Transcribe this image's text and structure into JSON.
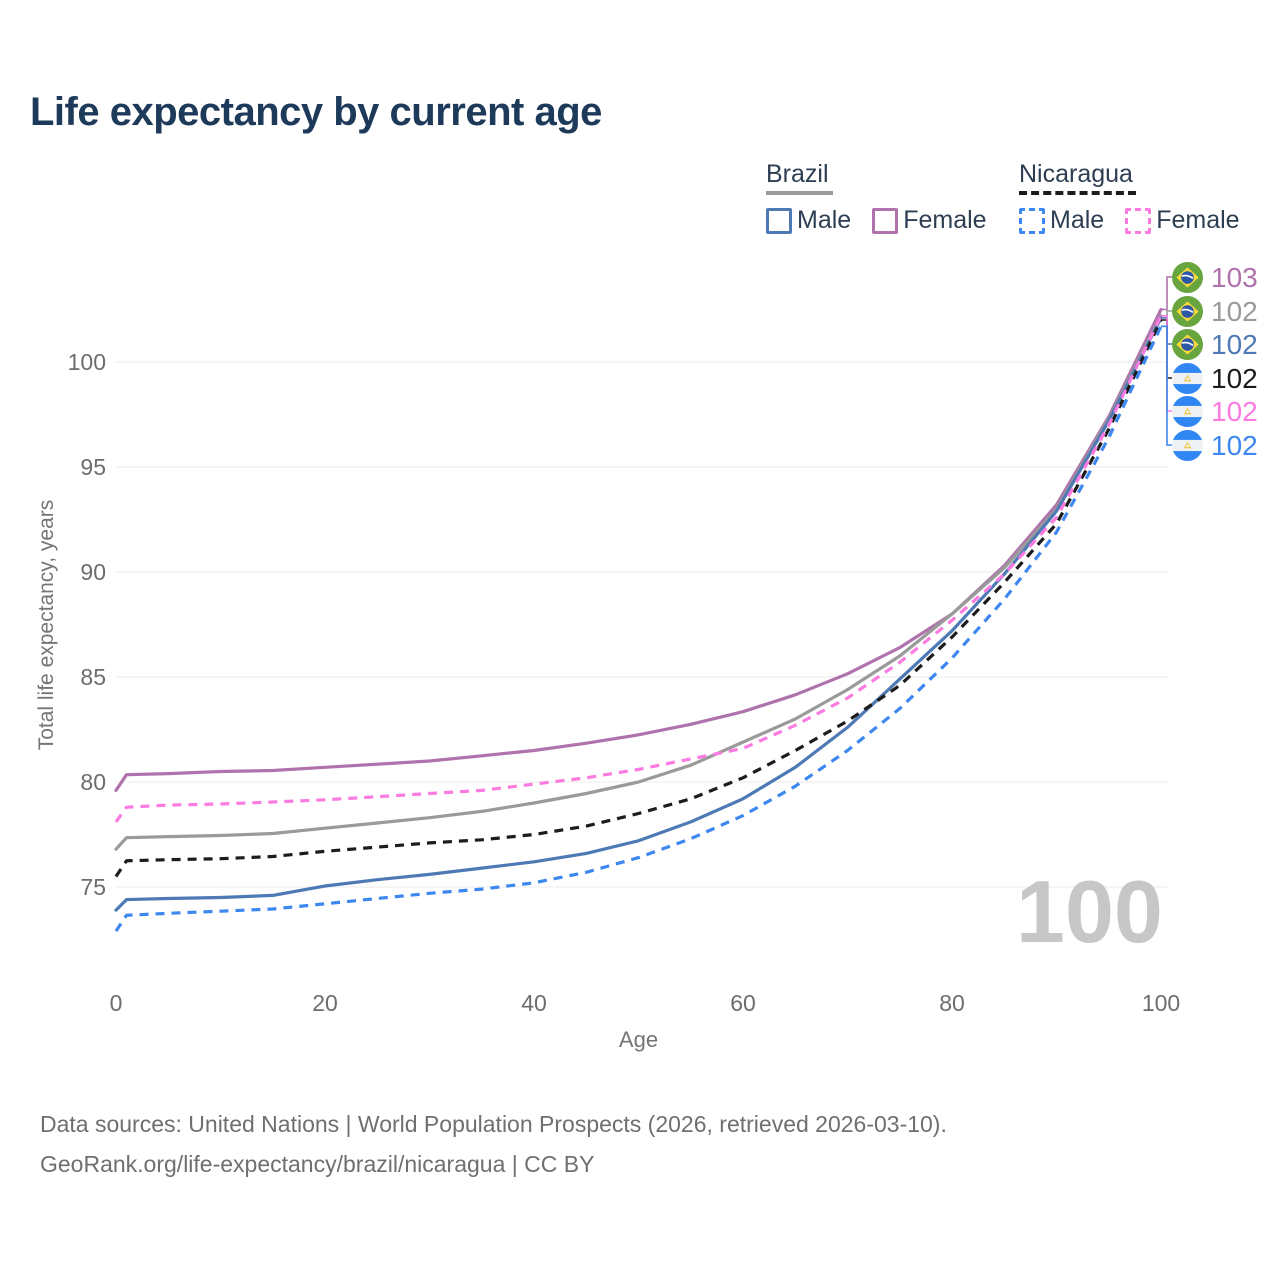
{
  "title": "Life expectancy by current age",
  "legend": {
    "brazil": {
      "label": "Brazil",
      "male": "Male",
      "female": "Female"
    },
    "nicaragua": {
      "label": "Nicaragua",
      "male": "Male",
      "female": "Female"
    }
  },
  "axes": {
    "x_label": "Age",
    "y_label": "Total life expectancy, years",
    "x_ticks": [
      0,
      20,
      40,
      60,
      80,
      100
    ],
    "y_ticks": [
      75,
      80,
      85,
      90,
      95,
      100
    ]
  },
  "watermark": "100",
  "footer": {
    "line1": "Data sources: United Nations | World Population Prospects (2026, retrieved 2026-03-10).",
    "line2": "GeoRank.org/life-expectancy/brazil/nicaragua | CC BY"
  },
  "colors": {
    "title": "#1e3a5a",
    "axis_text": "#6d6d6d",
    "grid": "#ebebeb",
    "watermark": "#c7c7c7",
    "brazil_female": "#af72ad",
    "brazil_total": "#9a9a9a",
    "brazil_male": "#4d79b5",
    "nicaragua_total": "#1c1c1c",
    "nicaragua_female": "#fb7be0",
    "nicaragua_male": "#3d87f1"
  },
  "chart_data": {
    "type": "line",
    "title": "Life expectancy by current age",
    "xlabel": "Age",
    "ylabel": "Total life expectancy, years",
    "xlim": [
      0,
      100
    ],
    "ylim": [
      75,
      100
    ],
    "grid": "horizontal",
    "legend_position": "top-right",
    "x": [
      0,
      1,
      5,
      10,
      15,
      20,
      25,
      30,
      35,
      40,
      45,
      50,
      55,
      60,
      65,
      70,
      75,
      80,
      85,
      90,
      95,
      100
    ],
    "series": [
      {
        "name": "Brazil — Female",
        "country": "brazil",
        "dash": false,
        "color": "#af72ad",
        "end_label": "103",
        "values": [
          79.6,
          80.35,
          80.4,
          80.5,
          80.55,
          80.7,
          80.85,
          81.0,
          81.25,
          81.5,
          81.85,
          82.25,
          82.75,
          83.35,
          84.15,
          85.15,
          86.4,
          88.0,
          90.3,
          93.2,
          97.4,
          102.5
        ]
      },
      {
        "name": "Brazil",
        "country": "brazil",
        "dash": false,
        "color": "#9a9a9a",
        "end_label": "102",
        "values": [
          76.8,
          77.35,
          77.4,
          77.45,
          77.55,
          77.8,
          78.05,
          78.3,
          78.6,
          79.0,
          79.45,
          80.0,
          80.8,
          81.9,
          83.0,
          84.4,
          86.0,
          88.0,
          90.2,
          93.0,
          97.3,
          102.2
        ]
      },
      {
        "name": "Brazil — Male",
        "country": "brazil",
        "dash": false,
        "color": "#4d79b5",
        "end_label": "102",
        "values": [
          73.9,
          74.4,
          74.45,
          74.5,
          74.6,
          75.05,
          75.35,
          75.6,
          75.9,
          76.2,
          76.6,
          77.2,
          78.1,
          79.2,
          80.7,
          82.6,
          84.9,
          87.2,
          89.9,
          92.9,
          97.2,
          102.1
        ]
      },
      {
        "name": "Nicaragua",
        "country": "nicaragua",
        "dash": true,
        "color": "#1c1c1c",
        "end_label": "102",
        "values": [
          75.5,
          76.25,
          76.3,
          76.35,
          76.45,
          76.7,
          76.9,
          77.1,
          77.25,
          77.5,
          77.9,
          78.5,
          79.2,
          80.2,
          81.5,
          82.9,
          84.6,
          86.9,
          89.5,
          92.3,
          96.8,
          102.0
        ]
      },
      {
        "name": "Nicaragua — Female",
        "country": "nicaragua",
        "dash": true,
        "color": "#fb7be0",
        "end_label": "102",
        "values": [
          78.1,
          78.8,
          78.9,
          78.95,
          79.05,
          79.15,
          79.3,
          79.45,
          79.6,
          79.9,
          80.2,
          80.6,
          81.1,
          81.6,
          82.7,
          84.0,
          85.7,
          87.7,
          89.9,
          92.6,
          97.0,
          102.2
        ]
      },
      {
        "name": "Nicaragua — Male",
        "country": "nicaragua",
        "dash": true,
        "color": "#3d87f1",
        "end_label": "102",
        "values": [
          72.9,
          73.65,
          73.75,
          73.85,
          73.95,
          74.2,
          74.45,
          74.7,
          74.9,
          75.2,
          75.7,
          76.4,
          77.3,
          78.4,
          79.8,
          81.5,
          83.5,
          85.9,
          88.7,
          91.9,
          96.4,
          101.7
        ]
      }
    ]
  }
}
